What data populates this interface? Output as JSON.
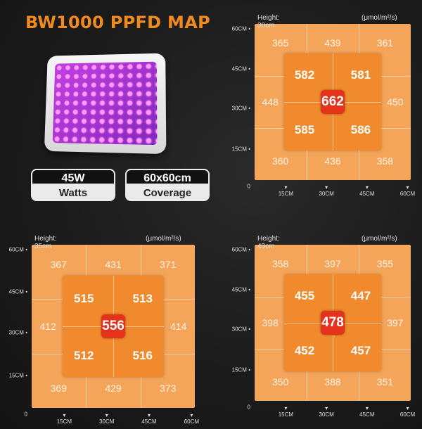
{
  "title": "BW1000 PPFD MAP",
  "specs": [
    {
      "value": "45W",
      "label": "Watts"
    },
    {
      "value": "60x60cm",
      "label": "Coverage"
    }
  ],
  "unit": "(μmol/m²/s)",
  "y_ticks": [
    "60CM",
    "45CM",
    "30CM",
    "15CM",
    "0"
  ],
  "x_ticks": [
    "15CM",
    "30CM",
    "45CM",
    "60CM"
  ],
  "maps": [
    {
      "height": "Height: 30cm",
      "outer": [
        "365",
        "439",
        "361",
        "448",
        "450",
        "360",
        "436",
        "358"
      ],
      "inner": [
        "582",
        "581",
        "585",
        "586"
      ],
      "center": "662"
    },
    {
      "height": "Height: 35cm",
      "outer": [
        "367",
        "431",
        "371",
        "412",
        "414",
        "369",
        "429",
        "373"
      ],
      "inner": [
        "515",
        "513",
        "512",
        "516"
      ],
      "center": "556"
    },
    {
      "height": "Height: 40cm",
      "outer": [
        "358",
        "397",
        "355",
        "398",
        "397",
        "350",
        "388",
        "351"
      ],
      "inner": [
        "455",
        "447",
        "452",
        "457"
      ],
      "center": "478"
    }
  ],
  "colors": {
    "title": "#f08a1f",
    "outer": "#f5a55a",
    "inner": "#f08a2c",
    "center": "#e5321a"
  }
}
